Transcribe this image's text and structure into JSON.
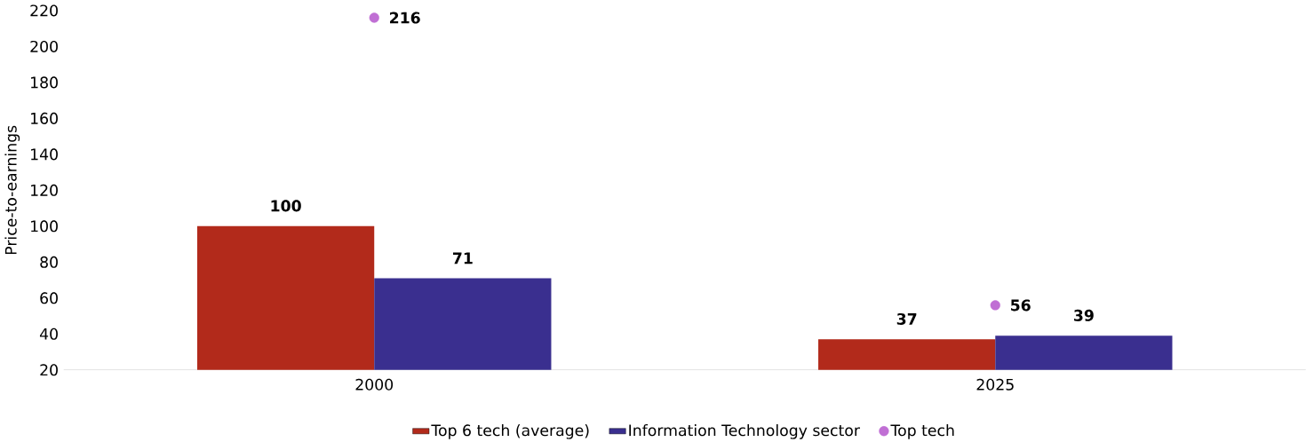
{
  "chart_data": {
    "type": "bar",
    "ylabel": "Price-to-earnings",
    "categories": [
      "2000",
      "2025"
    ],
    "series": [
      {
        "name": "Top 6 tech (average)",
        "color": "#b22a1b",
        "values": [
          100,
          37
        ]
      },
      {
        "name": "Information Technology sector",
        "color": "#3a2f8f",
        "values": [
          71,
          39
        ]
      },
      {
        "name": "Top tech",
        "type": "scatter",
        "color": "#c06fd4",
        "values": [
          216,
          56
        ]
      }
    ],
    "ylim": [
      20,
      220
    ],
    "yticks": [
      20,
      40,
      60,
      80,
      100,
      120,
      140,
      160,
      180,
      200,
      220
    ],
    "data_labels": true,
    "legend": "bottom",
    "grid": false
  }
}
